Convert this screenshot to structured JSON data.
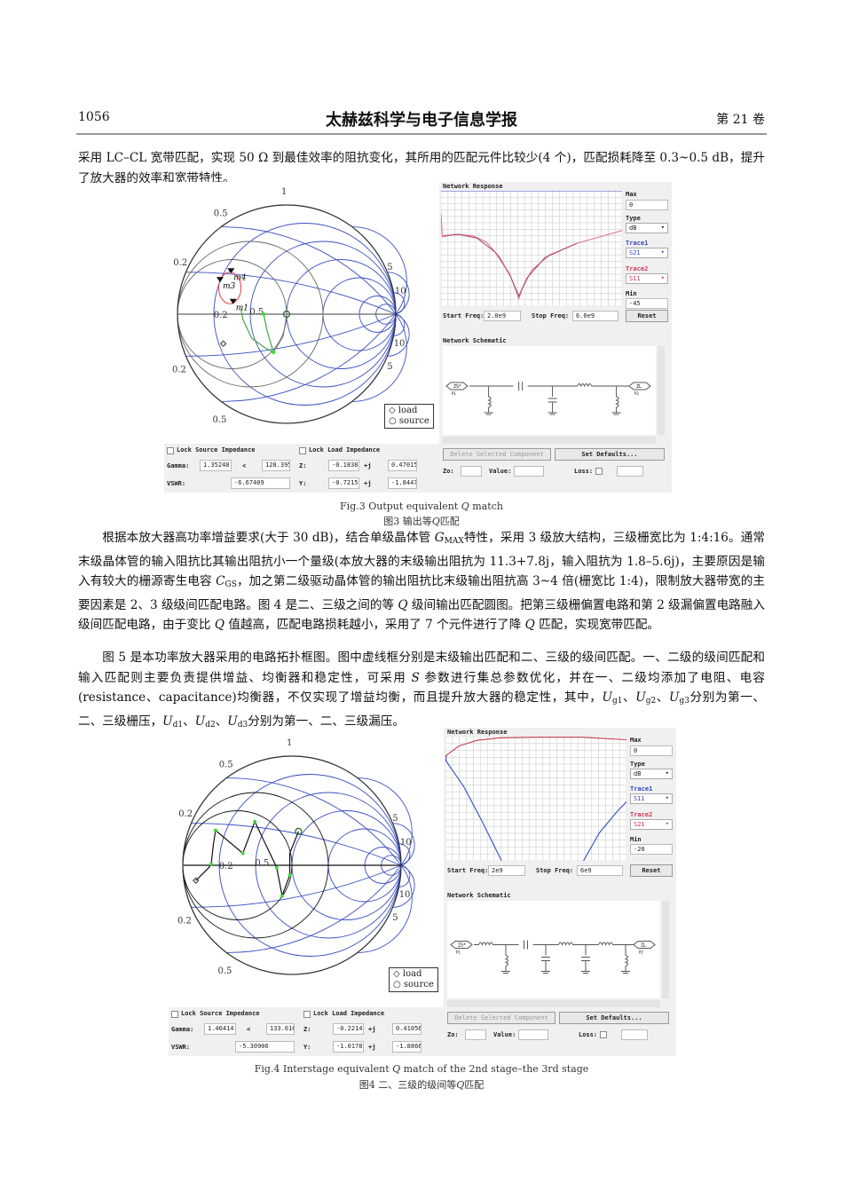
{
  "header": {
    "page_number": "1056",
    "journal_title": "太赫兹科学与电子信息学报",
    "volume": "第 21 卷"
  },
  "paragraphs": [
    {
      "segments": [
        {
          "t": "采用 LC–CL 宽带匹配，实现 50 Ω 到最佳效率的阻抗变化，其所用的匹配元件比较少(4 个)，匹配损耗降至 0.3~0.5 dB，提升了放大器的效率和宽带特性。"
        }
      ]
    },
    {
      "segments": [
        {
          "t": "根据本放大器高功率增益要求(大于 30 dB)，结合单级晶体管 "
        },
        {
          "t": "G",
          "i": true
        },
        {
          "t": "MAX",
          "sub": true
        },
        {
          "t": "特性，采用 3 级放大结构，三级栅宽比为 1:4:16。通常末级晶体管的输入阻抗比其输出阻抗小一个量级(本放大器的末级输出阻抗为 11.3+7.8j，输入阻抗为 1.8–5.6j)，主要原因是输入有较大的栅源寄生电容 "
        },
        {
          "t": "C",
          "i": true
        },
        {
          "t": "GS",
          "sub": true
        },
        {
          "t": "，加之第二级驱动晶体管的输出阻抗比末级输出阻抗高 3~4 倍(栅宽比 1:4)，限制放大器带宽的主要因素是 2、3 级级间匹配电路。图 4 是二、三级之间的等 "
        },
        {
          "t": "Q",
          "i": true
        },
        {
          "t": " 级间输出匹配圆图。把第三级栅偏置电路和第 2 级漏偏置电路融入级间匹配电路，由于变比 "
        },
        {
          "t": "Q",
          "i": true
        },
        {
          "t": " 值越高，匹配电路损耗越小，采用了 7 个元件进行了降 "
        },
        {
          "t": "Q",
          "i": true
        },
        {
          "t": " 匹配，实现宽带匹配。"
        }
      ]
    },
    {
      "segments": [
        {
          "t": "图 5 是本功率放大器采用的电路拓扑框图。图中虚线框分别是末级输出匹配和二、三级的级间匹配。一、二级的级间匹配和输入匹配则主要负责提供增益、均衡器和稳定性，可采用 "
        },
        {
          "t": "S",
          "i": true
        },
        {
          "t": " 参数进行集总参数优化，并在一、二级均添加了电阻、电容(resistance、capacitance)均衡器，不仅实现了增益均衡，而且提升放大器的稳定性，其中，"
        },
        {
          "t": "U",
          "i": true
        },
        {
          "t": "g1",
          "sub": true
        },
        {
          "t": "、"
        },
        {
          "t": "U",
          "i": true
        },
        {
          "t": "g2",
          "sub": true
        },
        {
          "t": "、"
        },
        {
          "t": "U",
          "i": true
        },
        {
          "t": "g3",
          "sub": true
        },
        {
          "t": "分别为第一、二、三级栅压，"
        },
        {
          "t": "U",
          "i": true
        },
        {
          "t": "d1",
          "sub": true
        },
        {
          "t": "、"
        },
        {
          "t": "U",
          "i": true
        },
        {
          "t": "d2",
          "sub": true
        },
        {
          "t": "、"
        },
        {
          "t": "U",
          "i": true
        },
        {
          "t": "d3",
          "sub": true
        },
        {
          "t": "分别为第一、二、三级漏压。"
        }
      ]
    }
  ],
  "figures": [
    {
      "caption_en_prefix": "Fig.3 Output equivalent ",
      "caption_en_q": "Q",
      "caption_en_suffix": " match",
      "caption_zh_prefix": "图3 输出等",
      "caption_zh_q": "Q",
      "caption_zh_suffix": "匹配",
      "smith": {
        "labels": [
          "1",
          "0.5",
          "0.2",
          "0.2",
          "0.5",
          "0.2",
          "0.5",
          "5",
          "10",
          "10",
          "5"
        ],
        "legend": [
          "load",
          "source"
        ],
        "grid_color": "#3a4fc0",
        "secondary_grid_color": "#666666",
        "markers": [
          {
            "name": "m4",
            "u": -0.51,
            "v": 0.38
          },
          {
            "name": "m3",
            "u": -0.61,
            "v": 0.3
          },
          {
            "name": "m1",
            "u": -0.49,
            "v": 0.1
          }
        ],
        "loop": {
          "u": -0.52,
          "v": 0.24,
          "r": 0.12,
          "color": "#e04040"
        },
        "trace": [
          [
            -0.42,
            0.05
          ],
          [
            -0.4,
            -0.05
          ],
          [
            -0.32,
            -0.22
          ],
          [
            -0.21,
            -0.3
          ],
          [
            -0.12,
            -0.35
          ],
          [
            -0.18,
            -0.15
          ],
          [
            -0.21,
            0.0
          ]
        ],
        "trace2": [
          [
            0.0,
            0.0
          ],
          [
            -0.03,
            -0.2
          ],
          [
            -0.12,
            -0.35
          ]
        ],
        "trace_color": "#44aa44",
        "dots": [
          [
            -0.21,
            0.0
          ],
          [
            -0.12,
            -0.35
          ]
        ],
        "load_point": [
          -0.58,
          -0.27
        ],
        "source_point": [
          0.0,
          0.0
        ]
      },
      "response": {
        "title": "Network Response",
        "max_label": "Max",
        "max": "0",
        "type_label": "Type",
        "type": "dB",
        "trace1_label": "Trace1",
        "trace1": "S21",
        "trace2_label": "Trace2",
        "trace2": "S11",
        "min_label": "Min",
        "min": "-45",
        "start_label": "Start Freq:",
        "start": "2.0e9",
        "stop_label": "Stop Freq:",
        "stop": "6.0e9",
        "reset": "Reset",
        "x_range_ghz": [
          2,
          6
        ],
        "y_range_db": [
          -45,
          0
        ],
        "curves": [
          {
            "trace": "S11",
            "color": "#e0709a",
            "points": [
              [
                2.0,
                -9
              ],
              [
                2.03,
                -18
              ],
              [
                2.3,
                -17
              ],
              [
                2.7,
                -17.5
              ],
              [
                3.0,
                -20
              ],
              [
                3.3,
                -26
              ],
              [
                3.55,
                -34
              ],
              [
                3.72,
                -42
              ],
              [
                3.8,
                -38
              ],
              [
                4.0,
                -31
              ],
              [
                4.4,
                -25
              ],
              [
                5.0,
                -20.5
              ],
              [
                5.5,
                -18
              ],
              [
                6.0,
                -15.5
              ]
            ]
          },
          {
            "trace": "S21",
            "color": "#b05070",
            "points": [
              [
                2.05,
                -17.5
              ],
              [
                2.4,
                -17
              ],
              [
                2.8,
                -18.5
              ],
              [
                3.2,
                -24
              ],
              [
                3.5,
                -32
              ],
              [
                3.72,
                -41
              ],
              [
                3.9,
                -34
              ],
              [
                4.3,
                -26
              ],
              [
                5.0,
                -20.5
              ]
            ]
          },
          {
            "trace": "ref",
            "color": "#4050c0",
            "points": [
              [
                2.0,
                0
              ],
              [
                6.0,
                0
              ]
            ]
          }
        ]
      },
      "schematic": {
        "title": "Network Schematic",
        "source_port": "ZS*",
        "load_port": "ZL",
        "port1": "P1",
        "port2": "P2",
        "components": [
          "shunt-inductor",
          "series-capacitor",
          "shunt-capacitor",
          "series-inductor",
          "shunt-inductor"
        ]
      },
      "controls": {
        "lock_source": "Lock Source Impedance",
        "lock_load": "Lock Load Impedance",
        "gamma_label": "Gamma:",
        "gamma_mag": "1.35248",
        "angle_symbol": "<",
        "gamma_angle": "128.395",
        "z_label": "Z:",
        "z_re": "-0.18389",
        "j1": "+j",
        "z_im": "0.47015",
        "vswr_label": "VSWR:",
        "vswr": "-6.67409",
        "y_label": "Y:",
        "y_re": "-0.72155",
        "j2": "+j",
        "y_im": "-1.84476",
        "delete_btn": "Delete Selected Component",
        "defaults_btn": "Set Defaults...",
        "zo_label": "Zo:",
        "value_label": "Value:",
        "loss_label": "Loss:"
      }
    },
    {
      "caption_en_prefix": "Fig.4 Interstage equivalent ",
      "caption_en_q": "Q",
      "caption_en_suffix": " match of the 2nd stage–the 3rd stage",
      "caption_zh_prefix": "图4 二、三级的级间等",
      "caption_zh_q": "Q",
      "caption_zh_suffix": "匹配",
      "smith": {
        "labels": [
          "1",
          "0.5",
          "0.2",
          "0.2",
          "0.5",
          "0.2",
          "0.5",
          "5",
          "10",
          "10",
          "5"
        ],
        "legend": [
          "load",
          "source"
        ],
        "grid_color": "#3a4fc0",
        "secondary_grid_color": "#111111",
        "markers": [],
        "trace": [
          [
            -0.88,
            -0.14
          ],
          [
            -0.76,
            -0.02
          ],
          [
            -0.74,
            0.01
          ],
          [
            -0.72,
            0.19
          ],
          [
            -0.7,
            0.32
          ],
          [
            -0.45,
            0.11
          ],
          [
            -0.34,
            0.4
          ],
          [
            -0.14,
            -0.02
          ],
          [
            -0.09,
            -0.28
          ],
          [
            -0.02,
            -0.09
          ],
          [
            -0.02,
            0.11
          ],
          [
            0.06,
            0.31
          ]
        ],
        "trace_color": "#111111",
        "dots": [
          [
            -0.74,
            0.01
          ],
          [
            -0.7,
            0.32
          ],
          [
            -0.45,
            0.11
          ],
          [
            -0.34,
            0.4
          ],
          [
            -0.14,
            -0.02
          ],
          [
            -0.09,
            -0.28
          ],
          [
            -0.02,
            -0.09
          ]
        ],
        "load_point": [
          -0.88,
          -0.14
        ],
        "source_point": [
          0.06,
          0.31
        ]
      },
      "response": {
        "title": "Network Response",
        "max_label": "Max",
        "max": "0",
        "type_label": "Type",
        "type": "dB",
        "trace1_label": "Trace1",
        "trace1": "S11",
        "trace2_label": "Trace2",
        "trace2": "S21",
        "min_label": "Min",
        "min": "-20",
        "start_label": "Start Freq:",
        "start": "2e9",
        "stop_label": "Stop Freq:",
        "stop": "6e9",
        "reset": "Reset",
        "x_range_ghz": [
          2,
          6
        ],
        "y_range_db": [
          -20,
          0
        ],
        "curves": [
          {
            "trace": "S21",
            "color": "#c04050",
            "points": [
              [
                2.0,
                -4
              ],
              [
                2.02,
                -3
              ],
              [
                2.3,
                -1.5
              ],
              [
                2.7,
                -0.6
              ],
              [
                3.2,
                -0.2
              ],
              [
                4.0,
                -0.1
              ],
              [
                5.0,
                -0.1
              ],
              [
                5.5,
                -0.3
              ],
              [
                6.0,
                -0.5
              ]
            ]
          },
          {
            "trace": "S11",
            "color": "#3050c0",
            "points": [
              [
                2.0,
                -3
              ],
              [
                2.02,
                -4
              ],
              [
                2.4,
                -8
              ],
              [
                2.8,
                -13.5
              ],
              [
                3.24,
                -20
              ]
            ]
          },
          {
            "trace": "S11",
            "color": "#3050c0",
            "points": [
              [
                5.05,
                -20
              ],
              [
                5.4,
                -15.5
              ],
              [
                5.8,
                -12
              ],
              [
                6.0,
                -10.5
              ]
            ]
          }
        ]
      },
      "schematic": {
        "title": "Network Schematic",
        "source_port": "ZS*",
        "load_port": "ZL",
        "port1": "P1",
        "port2": "P2",
        "components": [
          "series-inductor",
          "shunt-inductor",
          "series-capacitor",
          "shunt-capacitor",
          "series-inductor",
          "shunt-capacitor",
          "series-inductor",
          "shunt-inductor"
        ]
      },
      "controls": {
        "lock_source": "Lock Source Impedance",
        "lock_load": "Lock Load Impedance",
        "gamma_label": "Gamma:",
        "gamma_mag": "1.46414",
        "angle_symbol": "<",
        "gamma_angle": "133.616",
        "z_label": "Z:",
        "z_re": "-0.22149",
        "j1": "+j",
        "z_im": "0.41056",
        "vswr_label": "VSWR:",
        "vswr": "-5.30906",
        "y_label": "Y:",
        "y_re": "-1.01780",
        "j2": "+j",
        "y_im": "-1.88662",
        "delete_btn": "Delete Selected Component",
        "defaults_btn": "Set Defaults...",
        "zo_label": "Zo:",
        "value_label": "Value:",
        "loss_label": "Loss:"
      }
    }
  ]
}
